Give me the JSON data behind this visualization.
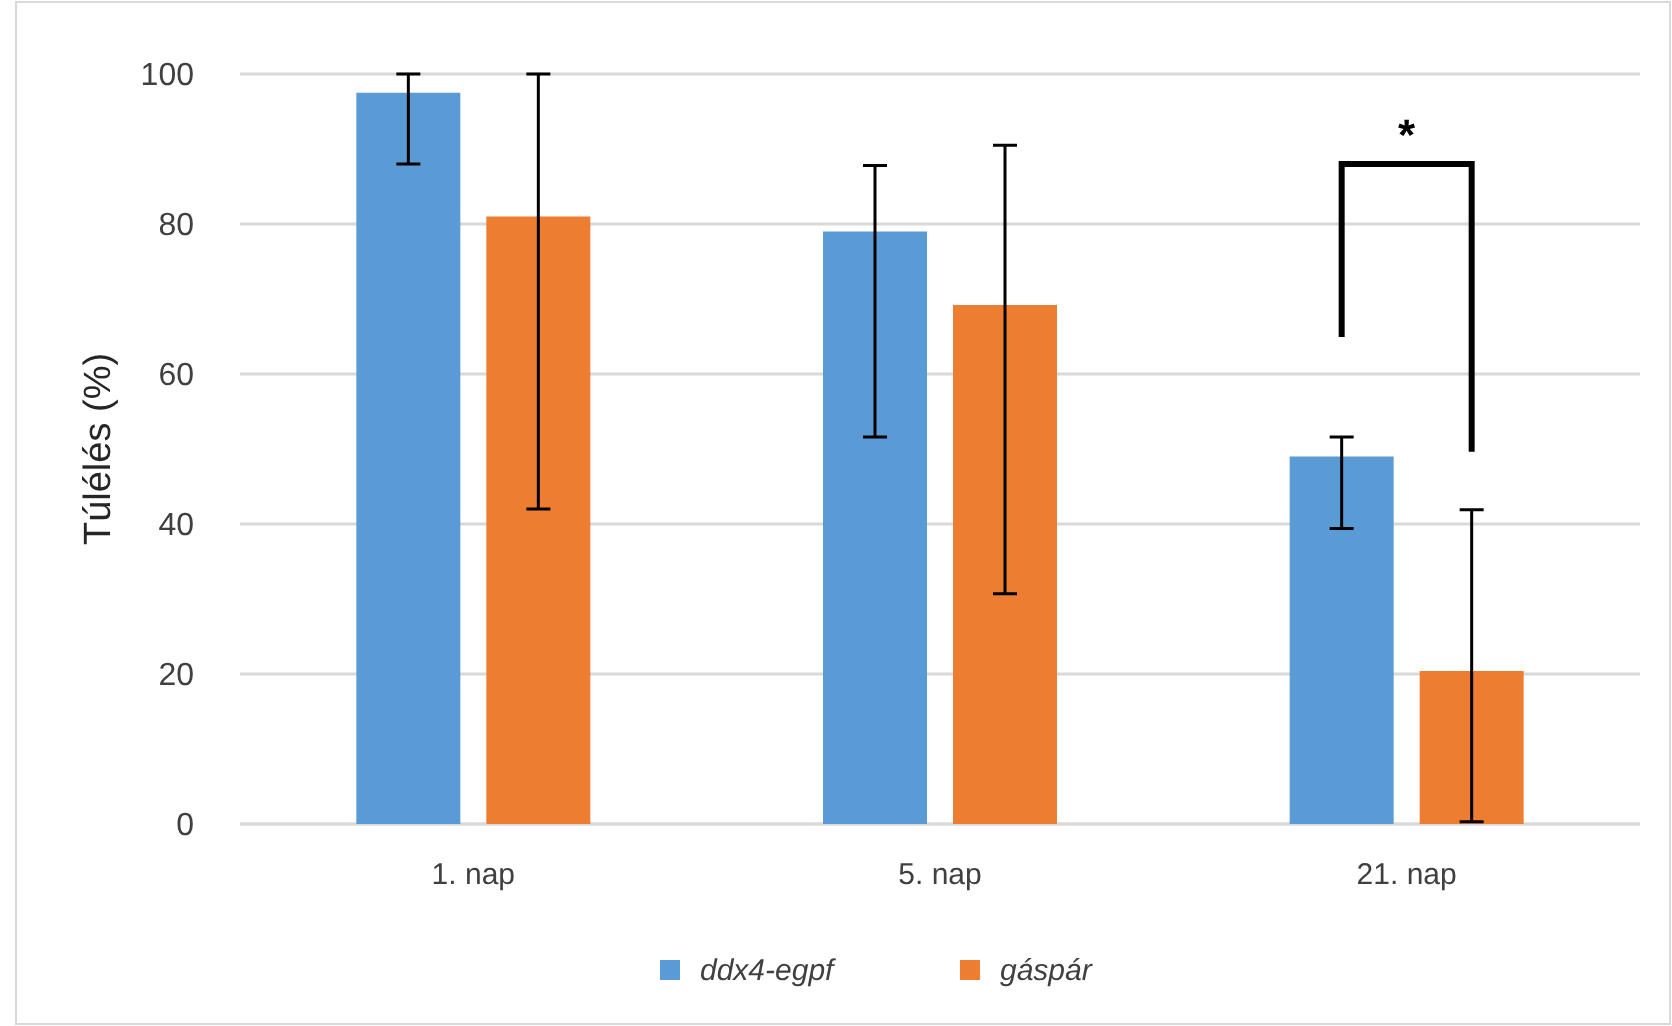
{
  "chart_data": {
    "type": "bar",
    "ylabel": "Túlélés (%)",
    "categories": [
      "1. nap",
      "5. nap",
      "21. nap"
    ],
    "series": [
      {
        "name": "ddx4-egpf",
        "color": "#5b9bd5",
        "values": [
          97.5,
          79,
          49
        ],
        "errors": [
          [
            88,
            100
          ],
          [
            51.6,
            87.8
          ],
          [
            39.4,
            51.6
          ]
        ]
      },
      {
        "name": "gáspár",
        "color": "#ed7d31",
        "values": [
          81,
          69.2,
          20.4
        ],
        "errors": [
          [
            42,
            100
          ],
          [
            30.7,
            90.5
          ],
          [
            0.3,
            41.9
          ]
        ]
      }
    ],
    "ylim": [
      0,
      100
    ],
    "yticks": [
      0,
      20,
      40,
      60,
      80,
      100
    ],
    "grid": "y",
    "legend": "bottom",
    "annotations": [
      "*"
    ]
  }
}
